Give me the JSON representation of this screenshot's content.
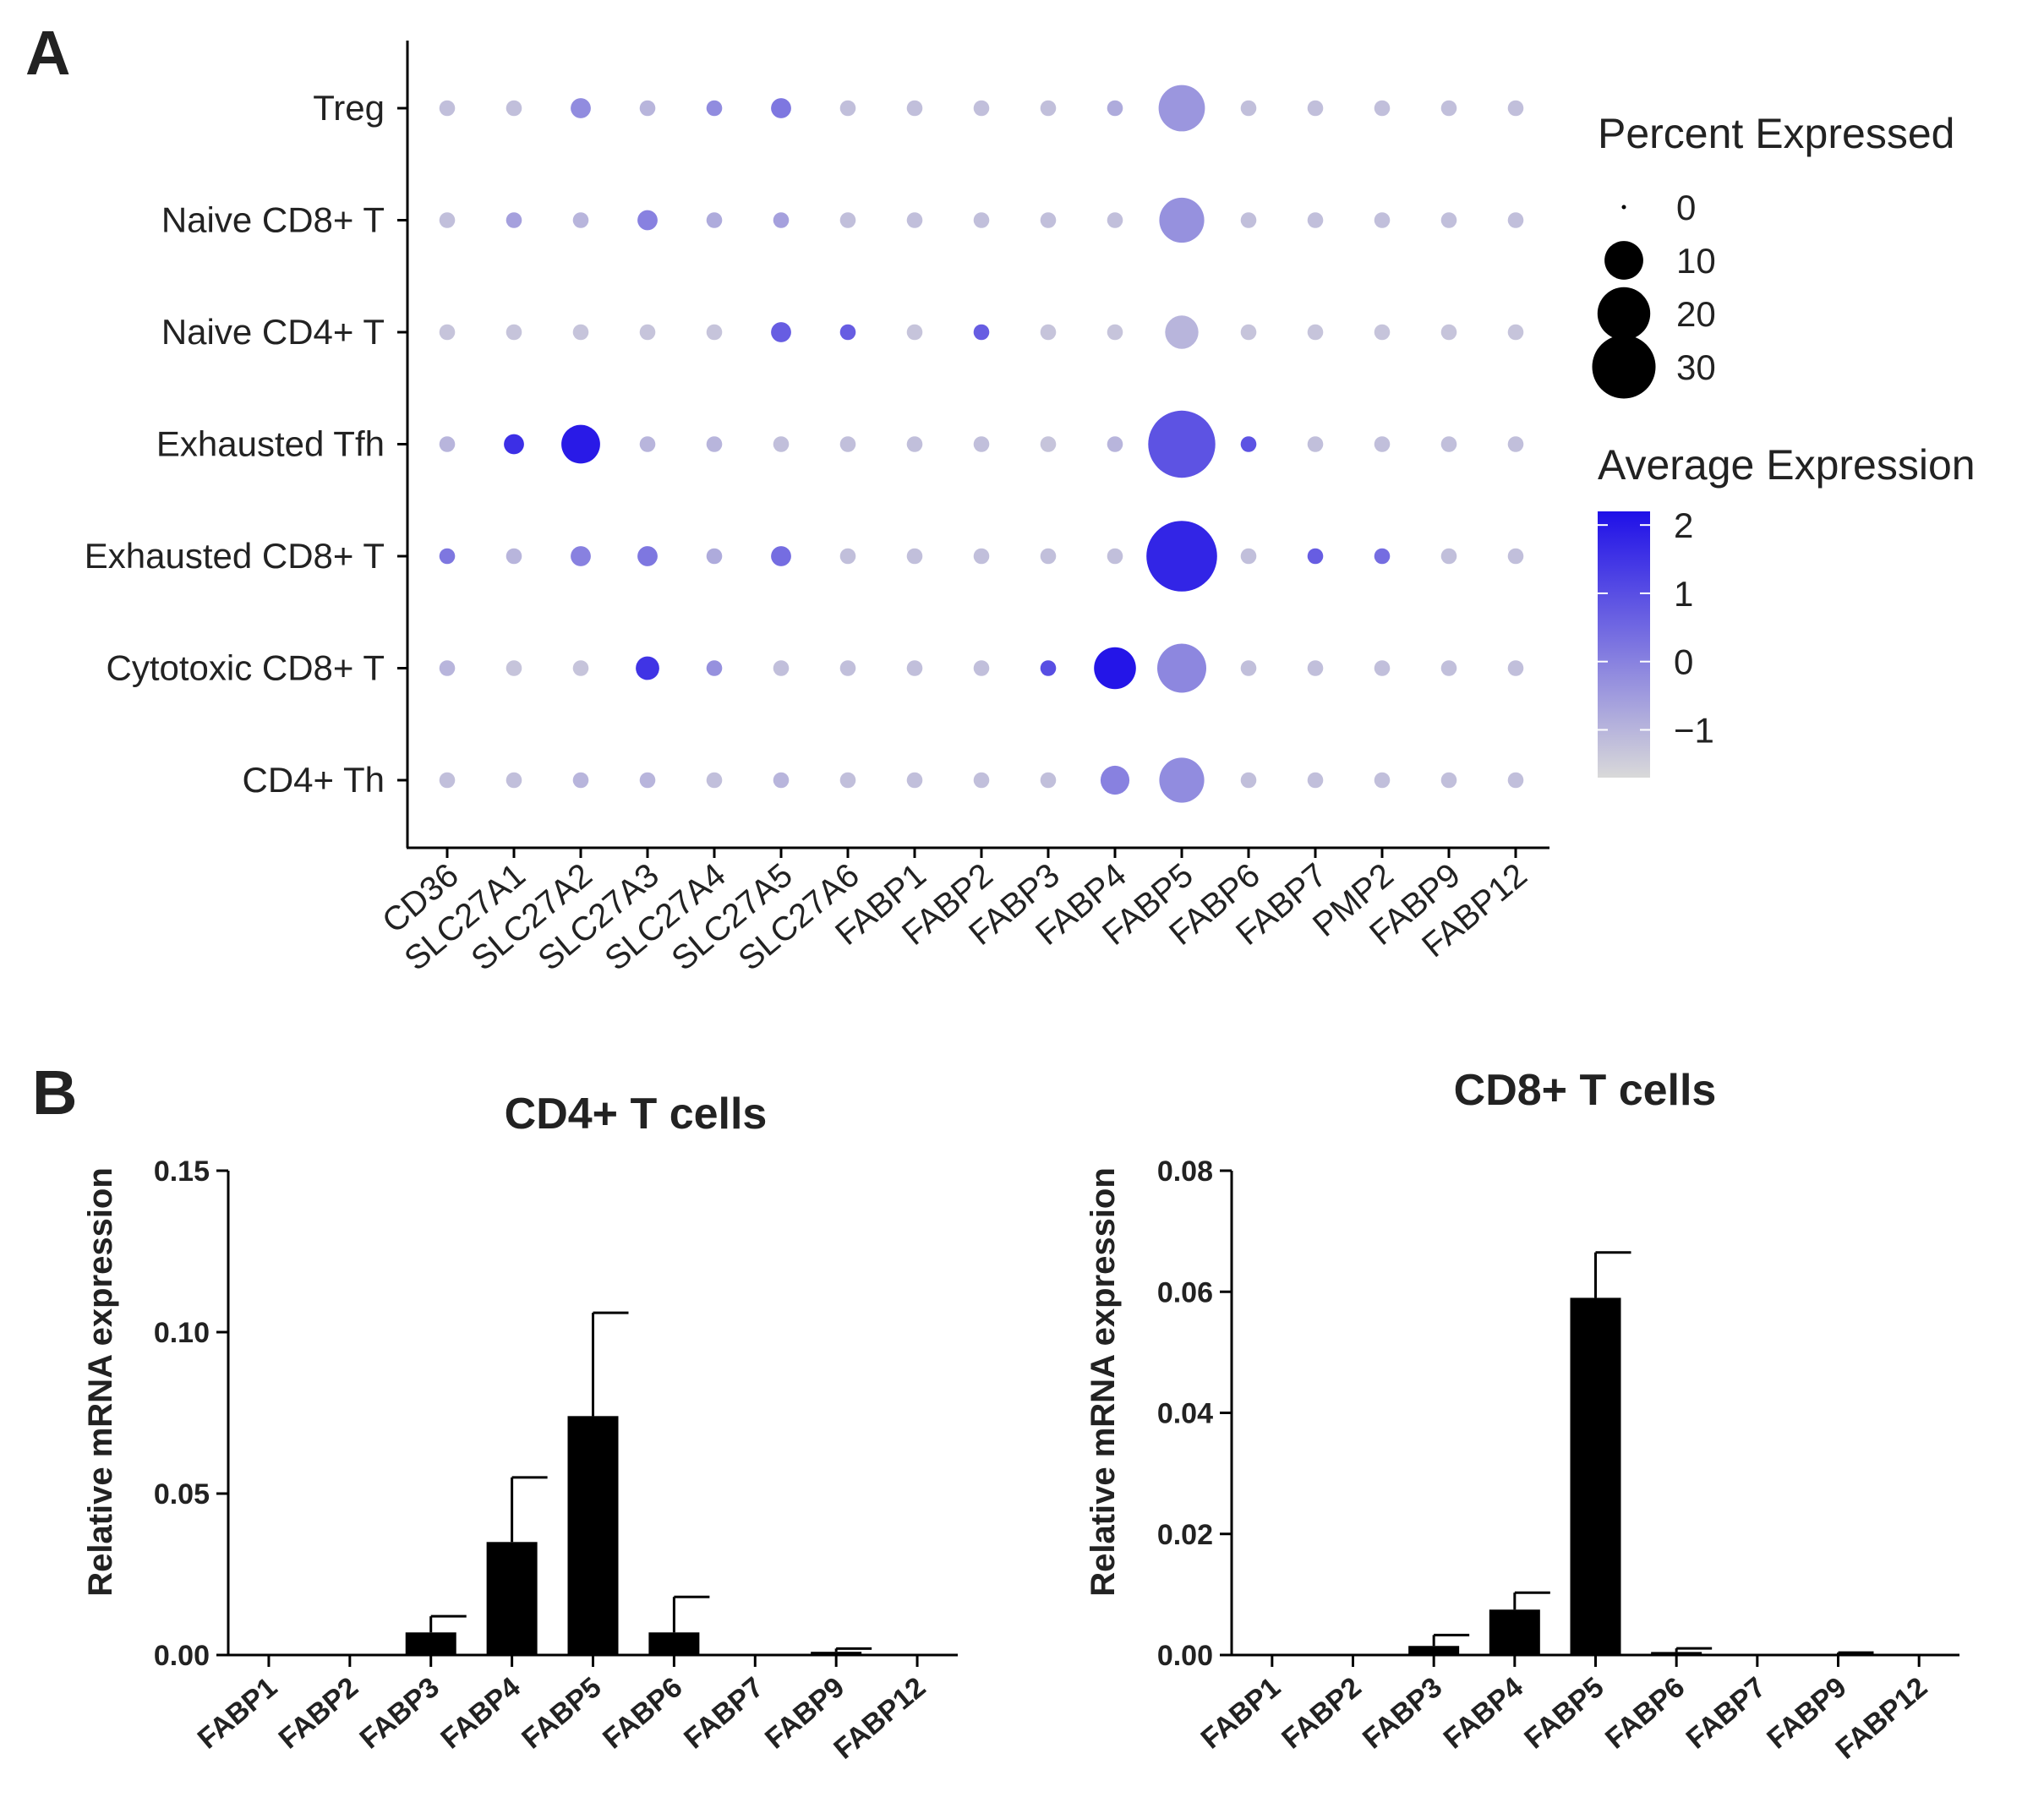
{
  "panels": {
    "a": "A",
    "b": "B"
  },
  "colors": {
    "low": "#d9d9d9",
    "high": "#1f10e8",
    "bar": "#000000"
  },
  "chart_data": [
    {
      "type": "dotplot",
      "panel": "A",
      "genes": [
        "CD36",
        "SLC27A1",
        "SLC27A2",
        "SLC27A3",
        "SLC27A4",
        "SLC27A5",
        "SLC27A6",
        "FABP1",
        "FABP2",
        "FABP3",
        "FABP4",
        "FABP5",
        "FABP6",
        "FABP7",
        "PMP2",
        "FABP9",
        "FABP12"
      ],
      "cell_types": [
        "Treg",
        "Naive CD8+ T",
        "Naive CD4+ T",
        "Exhausted Tfh",
        "Exhausted CD8+ T",
        "Cytotoxic CD8+ T",
        "CD4+ Th"
      ],
      "percent_expressed": [
        [
          1,
          1,
          2,
          1,
          1,
          2,
          1,
          1,
          1,
          1,
          1,
          15,
          1,
          1,
          1,
          1,
          1
        ],
        [
          1,
          1,
          1,
          2,
          1,
          1,
          1,
          1,
          1,
          1,
          1,
          14,
          1,
          1,
          1,
          1,
          1
        ],
        [
          1,
          1,
          1,
          1,
          1,
          2,
          1,
          1,
          1,
          1,
          1,
          7,
          1,
          1,
          1,
          1,
          1
        ],
        [
          1,
          2,
          10,
          1,
          1,
          1,
          1,
          1,
          1,
          1,
          1,
          34,
          1,
          1,
          1,
          1,
          1
        ],
        [
          1,
          1,
          2,
          2,
          1,
          2,
          1,
          1,
          1,
          1,
          1,
          38,
          1,
          1,
          1,
          1,
          1
        ],
        [
          1,
          1,
          1,
          3,
          1,
          1,
          1,
          1,
          1,
          1,
          12,
          17,
          1,
          1,
          1,
          1,
          1
        ],
        [
          1,
          1,
          1,
          1,
          1,
          1,
          1,
          1,
          1,
          1,
          5,
          14,
          1,
          1,
          1,
          1,
          1
        ]
      ],
      "average_expression": [
        [
          -1.2,
          -1.2,
          -0.2,
          -1.0,
          -0.2,
          0.2,
          -1.2,
          -1.2,
          -1.2,
          -1.2,
          -0.8,
          -0.4,
          -1.2,
          -1.2,
          -1.2,
          -1.2,
          -1.2
        ],
        [
          -1.2,
          -0.6,
          -1.0,
          0.0,
          -0.8,
          -0.6,
          -1.2,
          -1.2,
          -1.2,
          -1.2,
          -1.2,
          -0.3,
          -1.2,
          -1.2,
          -1.2,
          -1.2,
          -1.2
        ],
        [
          -1.3,
          -1.3,
          -1.3,
          -1.3,
          -1.3,
          0.7,
          0.7,
          -1.3,
          0.7,
          -1.3,
          -1.3,
          -1.0,
          -1.3,
          -1.3,
          -1.3,
          -1.3,
          -1.3
        ],
        [
          -1.0,
          1.6,
          2.0,
          -1.0,
          -1.0,
          -1.2,
          -1.2,
          -1.2,
          -1.2,
          -1.3,
          -1.0,
          0.9,
          0.9,
          -1.2,
          -1.2,
          -1.2,
          -1.2
        ],
        [
          0.2,
          -1.0,
          0.0,
          0.2,
          -0.8,
          0.4,
          -1.2,
          -1.2,
          -1.2,
          -1.2,
          -1.2,
          1.8,
          -1.2,
          0.7,
          0.4,
          -1.2,
          -1.2
        ],
        [
          -1.0,
          -1.3,
          -1.3,
          1.5,
          -0.3,
          -1.2,
          -1.2,
          -1.2,
          -1.2,
          1.0,
          2.1,
          -0.1,
          -1.2,
          -1.2,
          -1.2,
          -1.2,
          -1.2
        ],
        [
          -1.2,
          -1.2,
          -1.0,
          -1.0,
          -1.2,
          -1.0,
          -1.2,
          -1.2,
          -1.2,
          -1.2,
          0.0,
          -0.2,
          -1.2,
          -1.2,
          -1.2,
          -1.2,
          -1.2
        ]
      ],
      "legend": {
        "size_title": "Percent Expressed",
        "size_levels": [
          0,
          10,
          20,
          30
        ],
        "size_labels": [
          "0",
          "10",
          "20",
          "30"
        ],
        "color_title": "Average Expression",
        "color_ticks": [
          "2",
          "1",
          "0",
          "−1"
        ],
        "color_tick_values": [
          2,
          1,
          0,
          -1
        ],
        "color_range": [
          -1.7,
          2.2
        ]
      }
    },
    {
      "type": "bar",
      "panel": "B",
      "title": "CD4+ T cells",
      "ylabel": "Relative mRNA expression",
      "categories": [
        "FABP1",
        "FABP2",
        "FABP3",
        "FABP4",
        "FABP5",
        "FABP6",
        "FABP7",
        "FABP9",
        "FABP12"
      ],
      "values": [
        0,
        0,
        0.007,
        0.035,
        0.074,
        0.007,
        0,
        0.001,
        0.0003
      ],
      "errors": [
        0,
        0,
        0.005,
        0.02,
        0.032,
        0.011,
        0,
        0.001,
        0
      ],
      "ylim": [
        0,
        0.15
      ],
      "yticks": [
        0,
        0.05,
        0.1,
        0.15
      ],
      "ytick_labels": [
        "0.00",
        "0.05",
        "0.10",
        "0.15"
      ]
    },
    {
      "type": "bar",
      "panel": "B",
      "title": "CD8+ T cells",
      "ylabel": "Relative mRNA expression",
      "categories": [
        "FABP1",
        "FABP2",
        "FABP3",
        "FABP4",
        "FABP5",
        "FABP6",
        "FABP7",
        "FABP9",
        "FABP12"
      ],
      "values": [
        0,
        0,
        0.0015,
        0.0075,
        0.059,
        0.0005,
        0,
        0.0002,
        0
      ],
      "errors": [
        0,
        0,
        0.0018,
        0.0028,
        0.0075,
        0.0006,
        0,
        0.0002,
        0
      ],
      "ylim": [
        0,
        0.08
      ],
      "yticks": [
        0,
        0.02,
        0.04,
        0.06,
        0.08
      ],
      "ytick_labels": [
        "0.00",
        "0.02",
        "0.04",
        "0.06",
        "0.08"
      ]
    }
  ]
}
